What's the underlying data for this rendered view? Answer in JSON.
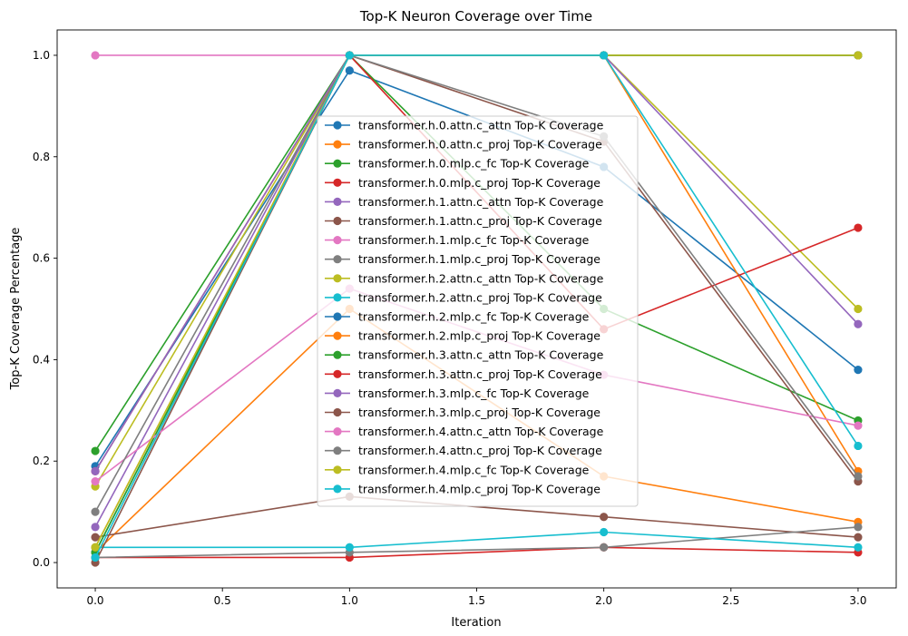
{
  "chart_data": {
    "type": "line",
    "title": "Top-K Neuron Coverage over Time",
    "xlabel": "Iteration",
    "ylabel": "Top-K Coverage Percentage",
    "xlim": [
      -0.15,
      3.15
    ],
    "ylim": [
      -0.05,
      1.05
    ],
    "xticks": [
      "0.0",
      "0.5",
      "1.0",
      "1.5",
      "2.0",
      "2.5",
      "3.0"
    ],
    "yticks": [
      "0.0",
      "0.2",
      "0.4",
      "0.6",
      "0.8",
      "1.0"
    ],
    "grid": false,
    "legend_position": "center",
    "x": [
      0,
      1,
      2,
      3
    ],
    "series": [
      {
        "name": "transformer.h.0.attn.c_attn Top-K Coverage",
        "color": "#1f77b4",
        "values": [
          0.19,
          0.97,
          0.78,
          0.38
        ]
      },
      {
        "name": "transformer.h.0.attn.c_proj Top-K Coverage",
        "color": "#ff7f0e",
        "values": [
          0.02,
          0.5,
          0.17,
          0.08
        ]
      },
      {
        "name": "transformer.h.0.mlp.c_fc Top-K Coverage",
        "color": "#2ca02c",
        "values": [
          0.22,
          1.0,
          0.5,
          0.28
        ]
      },
      {
        "name": "transformer.h.0.mlp.c_proj Top-K Coverage",
        "color": "#d62728",
        "values": [
          0.01,
          0.01,
          0.03,
          0.02
        ]
      },
      {
        "name": "transformer.h.1.attn.c_attn Top-K Coverage",
        "color": "#9467bd",
        "values": [
          0.07,
          1.0,
          1.0,
          1.0
        ]
      },
      {
        "name": "transformer.h.1.attn.c_proj Top-K Coverage",
        "color": "#8c564b",
        "values": [
          0.05,
          0.13,
          0.09,
          0.05
        ]
      },
      {
        "name": "transformer.h.1.mlp.c_fc Top-K Coverage",
        "color": "#e377c2",
        "values": [
          1.0,
          1.0,
          1.0,
          1.0
        ]
      },
      {
        "name": "transformer.h.1.mlp.c_proj Top-K Coverage",
        "color": "#7f7f7f",
        "values": [
          0.01,
          0.02,
          0.03,
          0.07
        ]
      },
      {
        "name": "transformer.h.2.attn.c_attn Top-K Coverage",
        "color": "#bcbd22",
        "values": [
          0.15,
          1.0,
          1.0,
          0.5
        ]
      },
      {
        "name": "transformer.h.2.attn.c_proj Top-K Coverage",
        "color": "#17becf",
        "values": [
          0.03,
          0.03,
          0.06,
          0.03
        ]
      },
      {
        "name": "transformer.h.2.mlp.c_fc Top-K Coverage",
        "color": "#1f77b4",
        "values": [
          0.02,
          1.0,
          1.0,
          1.0
        ]
      },
      {
        "name": "transformer.h.2.mlp.c_proj Top-K Coverage",
        "color": "#ff7f0e",
        "values": [
          0.03,
          1.0,
          1.0,
          0.18
        ]
      },
      {
        "name": "transformer.h.3.attn.c_attn Top-K Coverage",
        "color": "#2ca02c",
        "values": [
          0.02,
          1.0,
          1.0,
          1.0
        ]
      },
      {
        "name": "transformer.h.3.attn.c_proj Top-K Coverage",
        "color": "#d62728",
        "values": [
          0.18,
          1.0,
          0.46,
          0.66
        ]
      },
      {
        "name": "transformer.h.3.mlp.c_fc Top-K Coverage",
        "color": "#9467bd",
        "values": [
          0.18,
          1.0,
          1.0,
          0.47
        ]
      },
      {
        "name": "transformer.h.3.mlp.c_proj Top-K Coverage",
        "color": "#8c564b",
        "values": [
          0.0,
          1.0,
          0.83,
          0.16
        ]
      },
      {
        "name": "transformer.h.4.attn.c_attn Top-K Coverage",
        "color": "#e377c2",
        "values": [
          0.16,
          0.54,
          0.37,
          0.27
        ]
      },
      {
        "name": "transformer.h.4.attn.c_proj Top-K Coverage",
        "color": "#7f7f7f",
        "values": [
          0.1,
          1.0,
          0.84,
          0.17
        ]
      },
      {
        "name": "transformer.h.4.mlp.c_fc Top-K Coverage",
        "color": "#bcbd22",
        "values": [
          0.03,
          1.0,
          1.0,
          1.0
        ]
      },
      {
        "name": "transformer.h.4.mlp.c_proj Top-K Coverage",
        "color": "#17becf",
        "values": [
          0.01,
          1.0,
          1.0,
          0.23
        ]
      }
    ]
  }
}
